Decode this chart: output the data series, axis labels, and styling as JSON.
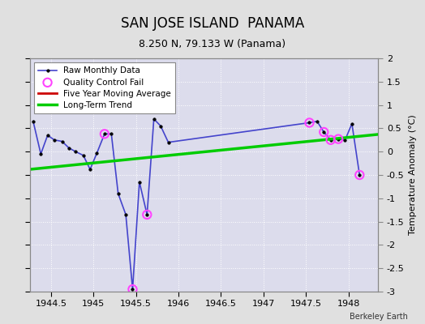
{
  "title": "SAN JOSE ISLAND  PANAMA",
  "subtitle": "8.250 N, 79.133 W (Panama)",
  "credit": "Berkeley Earth",
  "ylabel": "Temperature Anomaly (°C)",
  "xlim": [
    1944.25,
    1948.35
  ],
  "ylim": [
    -3.0,
    2.0
  ],
  "xticks": [
    1944.5,
    1945.0,
    1945.5,
    1946.0,
    1946.5,
    1947.0,
    1947.5,
    1948.0
  ],
  "yticks": [
    -3.0,
    -2.5,
    -2.0,
    -1.5,
    -1.0,
    -0.5,
    0.0,
    0.5,
    1.0,
    1.5,
    2.0
  ],
  "ytick_labels": [
    "-3",
    "-2.5",
    "-2",
    "-1.5",
    "-1",
    "-0.5",
    "0",
    "0.5",
    "1",
    "1.5",
    "2"
  ],
  "raw_x": [
    1944.29,
    1944.38,
    1944.46,
    1944.54,
    1944.63,
    1944.71,
    1944.79,
    1944.88,
    1944.96,
    1945.04,
    1945.13,
    1945.21,
    1945.29,
    1945.38,
    1945.46,
    1945.54,
    1945.63,
    1945.71,
    1945.79,
    1945.88,
    1947.54,
    1947.63,
    1947.71,
    1947.79,
    1947.88,
    1947.96,
    1948.04,
    1948.13
  ],
  "raw_y": [
    0.65,
    -0.05,
    0.35,
    0.25,
    0.22,
    0.08,
    0.0,
    -0.08,
    -0.38,
    -0.03,
    0.38,
    0.38,
    -0.9,
    -1.35,
    -2.95,
    -0.65,
    -1.35,
    0.7,
    0.55,
    0.2,
    0.62,
    0.65,
    0.42,
    0.25,
    0.27,
    0.25,
    0.6,
    -0.5
  ],
  "qc_fail_x": [
    1945.13,
    1945.46,
    1945.63,
    1947.54,
    1947.71,
    1947.79,
    1947.88,
    1948.13
  ],
  "qc_fail_y": [
    0.38,
    -2.95,
    -1.35,
    0.62,
    0.42,
    0.25,
    0.27,
    -0.5
  ],
  "trend_x": [
    1944.25,
    1948.35
  ],
  "trend_y": [
    -0.38,
    0.37
  ],
  "bg_color": "#e0e0e0",
  "plot_bg_color": "#dcdcec",
  "raw_line_color": "#4444cc",
  "raw_marker_color": "#000000",
  "qc_color": "#ff44ff",
  "trend_color": "#00cc00",
  "movavg_color": "#cc0000",
  "title_fontsize": 12,
  "subtitle_fontsize": 9,
  "label_fontsize": 8,
  "tick_fontsize": 8
}
